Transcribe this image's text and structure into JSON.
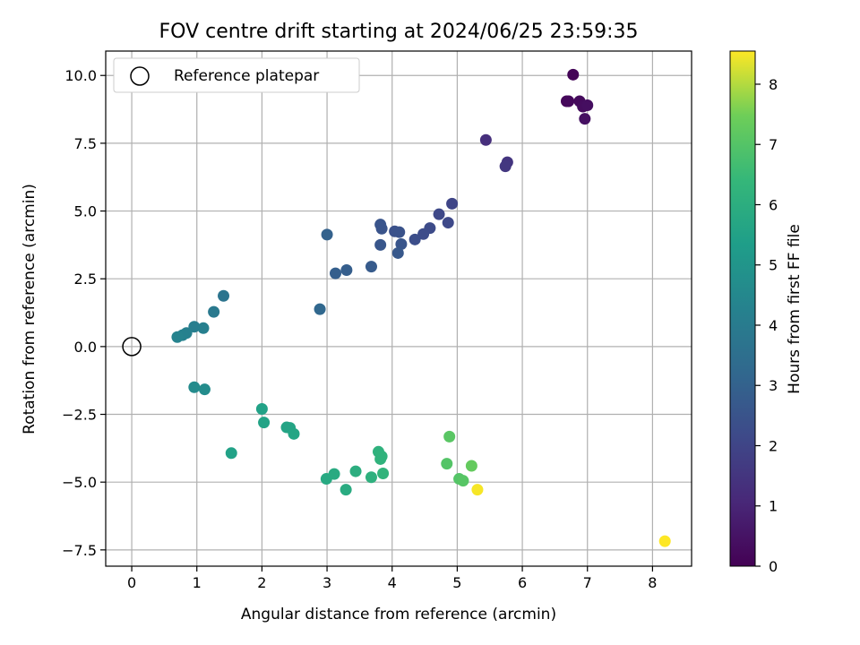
{
  "chart_data": {
    "type": "scatter",
    "title": "FOV centre drift starting at 2024/06/25 23:59:35",
    "xlabel": "Angular distance from reference (arcmin)",
    "ylabel": "Rotation from reference (arcmin)",
    "xlim": [
      -0.4,
      8.6
    ],
    "ylim": [
      -8.1,
      10.9
    ],
    "xticks": [
      "0",
      "1",
      "2",
      "3",
      "4",
      "5",
      "6",
      "7",
      "8"
    ],
    "yticks": [
      "−7.5",
      "−5.0",
      "−2.5",
      "0.0",
      "2.5",
      "5.0",
      "7.5",
      "10.0"
    ],
    "grid": true,
    "legend": {
      "placement": "top-left",
      "entries": [
        "Reference platepar"
      ]
    },
    "reference_point": {
      "x": 0.0,
      "y": 0.0
    },
    "colorbar": {
      "label": "Hours from first FF file",
      "range": [
        0,
        8.55
      ],
      "ticks": [
        "0",
        "1",
        "2",
        "3",
        "4",
        "5",
        "6",
        "7",
        "8"
      ],
      "colormap": "viridis"
    },
    "points": [
      {
        "x": 6.78,
        "y": 10.03,
        "t": 0.1
      },
      {
        "x": 6.68,
        "y": 9.05,
        "t": 0.15
      },
      {
        "x": 6.71,
        "y": 9.05,
        "t": 0.2
      },
      {
        "x": 6.88,
        "y": 9.05,
        "t": 0.25
      },
      {
        "x": 6.93,
        "y": 8.85,
        "t": 0.3
      },
      {
        "x": 7.0,
        "y": 8.9,
        "t": 0.35
      },
      {
        "x": 6.96,
        "y": 8.4,
        "t": 0.4
      },
      {
        "x": 5.44,
        "y": 7.62,
        "t": 1.3
      },
      {
        "x": 5.77,
        "y": 6.8,
        "t": 1.5
      },
      {
        "x": 5.74,
        "y": 6.65,
        "t": 1.55
      },
      {
        "x": 4.92,
        "y": 5.27,
        "t": 2.0
      },
      {
        "x": 4.72,
        "y": 4.88,
        "t": 2.1
      },
      {
        "x": 4.86,
        "y": 4.57,
        "t": 2.15
      },
      {
        "x": 4.58,
        "y": 4.37,
        "t": 2.2
      },
      {
        "x": 4.48,
        "y": 4.15,
        "t": 2.25
      },
      {
        "x": 4.35,
        "y": 3.95,
        "t": 2.3
      },
      {
        "x": 4.04,
        "y": 4.25,
        "t": 2.4
      },
      {
        "x": 4.11,
        "y": 4.22,
        "t": 2.45
      },
      {
        "x": 3.84,
        "y": 4.35,
        "t": 2.5
      },
      {
        "x": 3.82,
        "y": 4.5,
        "t": 2.52
      },
      {
        "x": 4.14,
        "y": 3.78,
        "t": 2.55
      },
      {
        "x": 3.82,
        "y": 3.75,
        "t": 2.6
      },
      {
        "x": 4.09,
        "y": 3.45,
        "t": 2.65
      },
      {
        "x": 3.68,
        "y": 2.95,
        "t": 2.75
      },
      {
        "x": 3.3,
        "y": 2.82,
        "t": 2.85
      },
      {
        "x": 3.13,
        "y": 2.7,
        "t": 2.9
      },
      {
        "x": 3.0,
        "y": 4.13,
        "t": 3.0
      },
      {
        "x": 2.89,
        "y": 1.38,
        "t": 3.2
      },
      {
        "x": 1.41,
        "y": 1.87,
        "t": 3.7
      },
      {
        "x": 1.26,
        "y": 1.28,
        "t": 3.9
      },
      {
        "x": 0.96,
        "y": 0.73,
        "t": 4.1
      },
      {
        "x": 1.1,
        "y": 0.68,
        "t": 4.15
      },
      {
        "x": 0.84,
        "y": 0.5,
        "t": 4.2
      },
      {
        "x": 0.78,
        "y": 0.42,
        "t": 4.25
      },
      {
        "x": 0.7,
        "y": 0.35,
        "t": 4.3
      },
      {
        "x": 0.96,
        "y": -1.5,
        "t": 4.6
      },
      {
        "x": 1.12,
        "y": -1.58,
        "t": 4.65
      },
      {
        "x": 1.53,
        "y": -3.93,
        "t": 5.5
      },
      {
        "x": 2.0,
        "y": -2.3,
        "t": 5.5
      },
      {
        "x": 2.03,
        "y": -2.8,
        "t": 5.55
      },
      {
        "x": 2.38,
        "y": -2.98,
        "t": 5.6
      },
      {
        "x": 2.43,
        "y": -3.0,
        "t": 5.62
      },
      {
        "x": 2.49,
        "y": -3.22,
        "t": 5.65
      },
      {
        "x": 2.99,
        "y": -4.88,
        "t": 5.8
      },
      {
        "x": 3.11,
        "y": -4.7,
        "t": 5.85
      },
      {
        "x": 3.29,
        "y": -5.28,
        "t": 5.9
      },
      {
        "x": 3.44,
        "y": -4.6,
        "t": 6.0
      },
      {
        "x": 3.68,
        "y": -4.82,
        "t": 6.1
      },
      {
        "x": 3.79,
        "y": -3.88,
        "t": 6.15
      },
      {
        "x": 3.82,
        "y": -4.15,
        "t": 6.2
      },
      {
        "x": 3.84,
        "y": -4.05,
        "t": 6.22
      },
      {
        "x": 3.86,
        "y": -4.68,
        "t": 6.25
      },
      {
        "x": 4.84,
        "y": -4.32,
        "t": 7.0
      },
      {
        "x": 4.88,
        "y": -3.32,
        "t": 7.1
      },
      {
        "x": 5.03,
        "y": -4.88,
        "t": 7.0
      },
      {
        "x": 5.09,
        "y": -4.95,
        "t": 7.05
      },
      {
        "x": 5.22,
        "y": -4.4,
        "t": 7.3
      },
      {
        "x": 5.31,
        "y": -5.28,
        "t": 8.5
      },
      {
        "x": 8.19,
        "y": -7.18,
        "t": 8.55
      }
    ]
  }
}
